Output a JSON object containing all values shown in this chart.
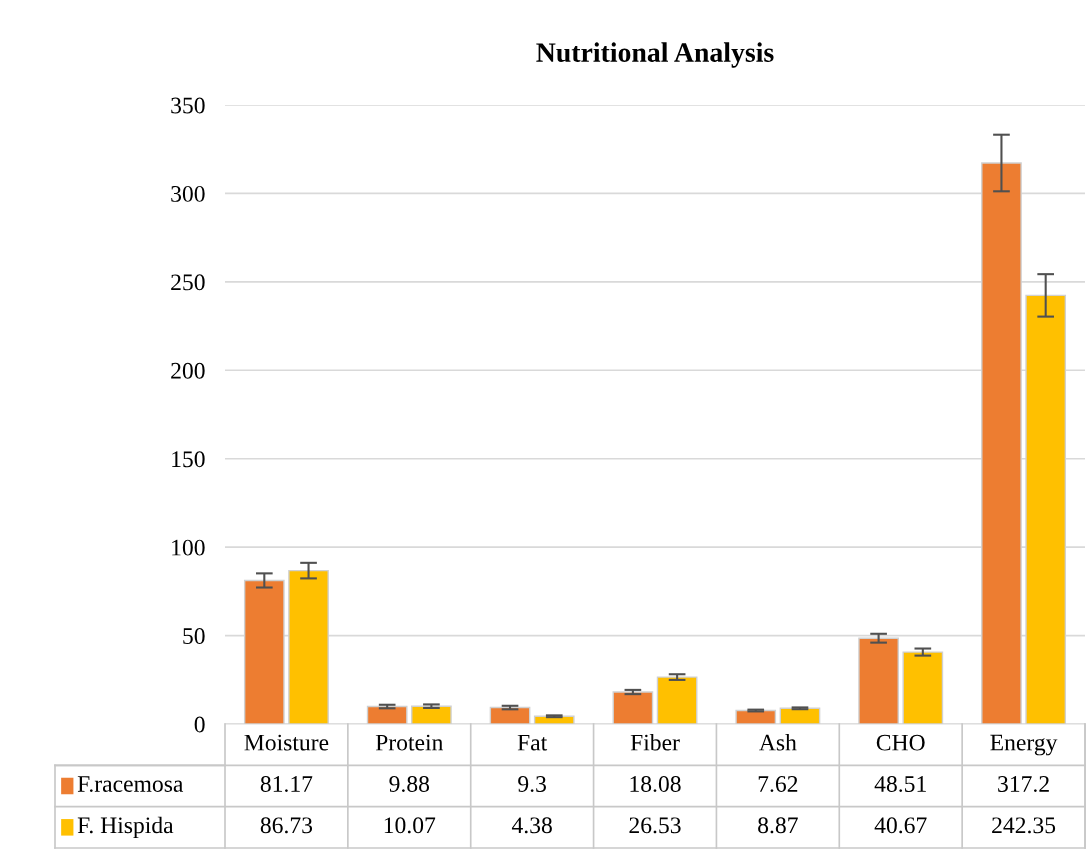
{
  "chart_data": {
    "type": "bar",
    "title": "Nutritional Analysis",
    "categories": [
      "Moisture",
      "Protein",
      "Fat",
      "Fiber",
      "Ash",
      "CHO",
      "Energy"
    ],
    "series": [
      {
        "name": "F.racemosa",
        "color": "#ed7d31",
        "values": [
          81.17,
          9.88,
          9.3,
          18.08,
          7.62,
          48.51,
          317.2
        ],
        "errors": [
          4,
          1,
          1,
          1.2,
          0.5,
          2.5,
          16
        ]
      },
      {
        "name": "F. Hispida",
        "color": "#ffc000",
        "values": [
          86.73,
          10.07,
          4.38,
          26.53,
          8.87,
          40.67,
          242.35
        ],
        "errors": [
          4.4,
          1,
          0.5,
          1.6,
          0.5,
          2,
          12
        ]
      }
    ],
    "ylim": [
      0,
      350
    ],
    "yticks": [
      0,
      50,
      100,
      150,
      200,
      250,
      300,
      350
    ],
    "grid": "y",
    "legend": "bottom",
    "data_labels": true
  }
}
